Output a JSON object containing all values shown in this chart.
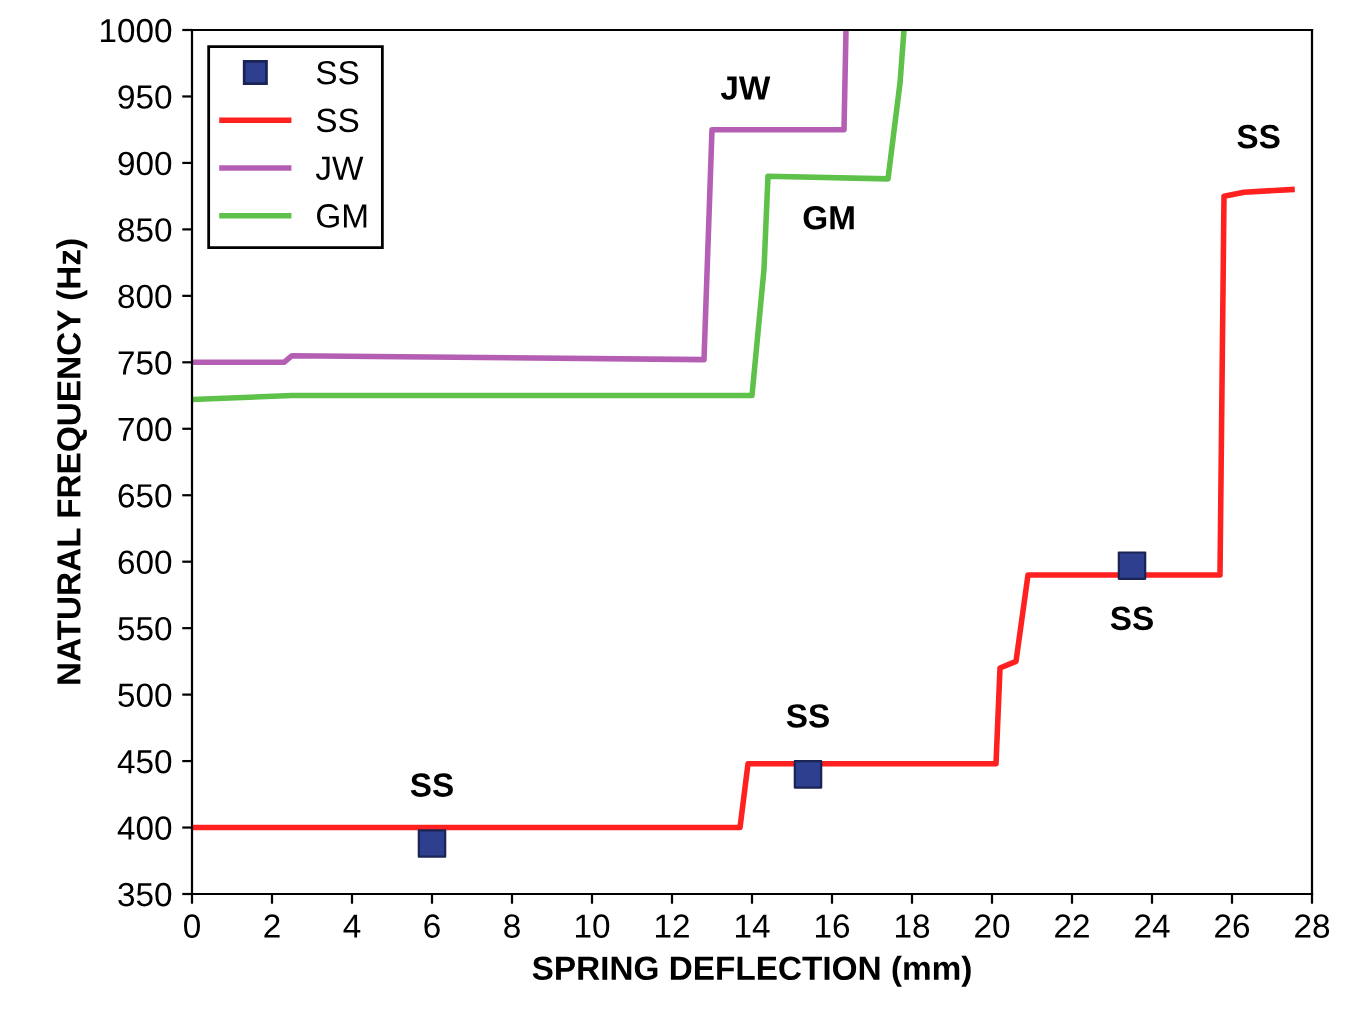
{
  "chart_data": {
    "type": "line",
    "xlabel": "SPRING DEFLECTION (mm)",
    "ylabel": "NATURAL FREQUENCY (Hz)",
    "xlim": [
      0,
      28
    ],
    "xticks": [
      0,
      2,
      4,
      6,
      8,
      10,
      12,
      14,
      16,
      18,
      20,
      22,
      24,
      26,
      28
    ],
    "ylim": [
      350,
      1000
    ],
    "yticks": [
      350,
      400,
      450,
      500,
      550,
      600,
      650,
      700,
      750,
      800,
      850,
      900,
      950,
      1000
    ],
    "grid": false,
    "legend": "top left",
    "series": [
      {
        "name": "SS",
        "type": "scatter",
        "marker": "square",
        "color": "#2e3f8f",
        "x": [
          6,
          15.4,
          23.5
        ],
        "values": [
          388,
          440,
          597
        ]
      },
      {
        "name": "SS",
        "color": "#ff2020",
        "x": [
          0,
          13.7,
          13.9,
          20.1,
          20.2,
          20.6,
          20.9,
          25.7,
          25.8,
          26.3,
          27.5
        ],
        "values": [
          400,
          400,
          448,
          448,
          520,
          525,
          590,
          590,
          875,
          878,
          880
        ]
      },
      {
        "name": "JW",
        "color": "#b45fb4",
        "x": [
          0,
          2.3,
          2.5,
          12.8,
          13.0,
          16.3,
          16.35
        ],
        "values": [
          750,
          750,
          755,
          752,
          925,
          925,
          1000
        ]
      },
      {
        "name": "GM",
        "color": "#5ec24a",
        "x": [
          0,
          2.5,
          14.0,
          14.3,
          14.4,
          17.4,
          17.7,
          17.8
        ],
        "values": [
          722,
          725,
          725,
          820,
          890,
          888,
          960,
          1000
        ]
      }
    ],
    "annotations": [
      {
        "text": "SS",
        "x": 6,
        "y": 388
      },
      {
        "text": "SS",
        "x": 15.4,
        "y": 440
      },
      {
        "text": "SS",
        "x": 23.5,
        "y": 597
      },
      {
        "text": "SS",
        "x": 27.5,
        "y": 880
      },
      {
        "text": "JW",
        "x": 13.0,
        "y": 925
      },
      {
        "text": "GM",
        "x": 14.4,
        "y": 890
      }
    ]
  }
}
